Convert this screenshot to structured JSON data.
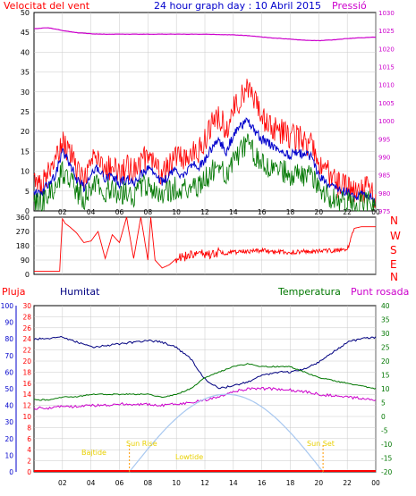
{
  "colors": {
    "red": "#ff0000",
    "blue": "#0000cc",
    "green": "#007700",
    "magenta": "#cc00cc",
    "navy": "#000080",
    "orange": "#ff9900",
    "yellow": "#e8d000",
    "light_blue": "#a8c8f0",
    "grid": "#c8c8c8"
  },
  "top": {
    "title": "24 hour graph day : 10 Abril 2015",
    "left_label": "Velocitat del vent",
    "right_label": "Pressió"
  },
  "middle": {
    "compass": [
      "N",
      "W",
      "S",
      "E",
      "N"
    ]
  },
  "bottom": {
    "legend_pluja": "Pluja",
    "legend_humitat": "Humitat",
    "legend_temperatura": "Temperatura",
    "legend_puntrosada": "Punt rosada",
    "sun_labels": [
      "Bajtide",
      "Sun Rise",
      "Lowtide",
      "Sun Set"
    ]
  },
  "chart_data": [
    {
      "type": "line",
      "name": "wind",
      "title": "24 hour graph day : 10 Abril 2015",
      "ylabel_left": "Velocitat del vent",
      "ylabel_right": "Pressió",
      "ylim_left": [
        0,
        50
      ],
      "ylim_right": [
        975,
        1030
      ],
      "yticks_left": [
        0,
        5,
        10,
        15,
        20,
        25,
        30,
        35,
        40,
        45,
        50
      ],
      "yticks_right": [
        975,
        980,
        985,
        990,
        995,
        1000,
        1005,
        1010,
        1015,
        1020,
        1025,
        1030
      ],
      "xlim": [
        0,
        24
      ],
      "xticks": [
        "02",
        "04",
        "06",
        "08",
        "10",
        "12",
        "14",
        "16",
        "18",
        "20",
        "22",
        "00"
      ],
      "xtick_values": [
        2,
        4,
        6,
        8,
        10,
        12,
        14,
        16,
        18,
        20,
        22,
        24
      ],
      "series": [
        {
          "name": "gust",
          "axis": "left",
          "color": "#ff0000",
          "x": [
            0,
            0.5,
            1,
            1.5,
            2,
            2.5,
            3,
            3.5,
            4,
            4.5,
            5,
            5.5,
            6,
            6.5,
            7,
            7.5,
            8,
            8.5,
            9,
            9.5,
            10,
            10.5,
            11,
            11.5,
            12,
            12.5,
            13,
            13.5,
            14,
            14.5,
            15,
            15.5,
            16,
            16.5,
            17,
            17.5,
            18,
            18.5,
            19,
            19.5,
            20,
            20.5,
            21,
            21.5,
            22,
            22.5,
            23,
            23.5,
            24
          ],
          "y": [
            8,
            6,
            10,
            12,
            18,
            15,
            10,
            8,
            12,
            14,
            10,
            12,
            9,
            11,
            10,
            12,
            14,
            11,
            9,
            12,
            14,
            12,
            16,
            15,
            18,
            22,
            24,
            20,
            26,
            28,
            30,
            27,
            24,
            22,
            20,
            20,
            18,
            19,
            17,
            18,
            12,
            10,
            8,
            6,
            6,
            4,
            5,
            6,
            3
          ]
        },
        {
          "name": "average",
          "axis": "left",
          "color": "#0000cc",
          "x": [
            0,
            0.5,
            1,
            1.5,
            2,
            2.5,
            3,
            3.5,
            4,
            4.5,
            5,
            5.5,
            6,
            6.5,
            7,
            7.5,
            8,
            8.5,
            9,
            9.5,
            10,
            10.5,
            11,
            11.5,
            12,
            12.5,
            13,
            13.5,
            14,
            14.5,
            15,
            15.5,
            16,
            16.5,
            17,
            17.5,
            18,
            18.5,
            19,
            19.5,
            20,
            20.5,
            21,
            21.5,
            22,
            22.5,
            23,
            23.5,
            24
          ],
          "y": [
            5,
            4,
            7,
            9,
            15,
            12,
            8,
            6,
            9,
            11,
            8,
            9,
            7,
            8,
            7,
            9,
            11,
            9,
            7,
            9,
            10,
            9,
            12,
            11,
            13,
            16,
            18,
            15,
            19,
            21,
            23,
            20,
            18,
            17,
            16,
            15,
            14,
            15,
            14,
            14,
            9,
            7,
            6,
            5,
            5,
            3,
            4,
            4,
            2
          ]
        },
        {
          "name": "minimum",
          "axis": "left",
          "color": "#007700",
          "x": [
            0,
            0.5,
            1,
            1.5,
            2,
            2.5,
            3,
            3.5,
            4,
            4.5,
            5,
            5.5,
            6,
            6.5,
            7,
            7.5,
            8,
            8.5,
            9,
            9.5,
            10,
            10.5,
            11,
            11.5,
            12,
            12.5,
            13,
            13.5,
            14,
            14.5,
            15,
            15.5,
            16,
            16.5,
            17,
            17.5,
            18,
            18.5,
            19,
            19.5,
            20,
            20.5,
            21,
            21.5,
            22,
            22.5,
            23,
            23.5,
            24
          ],
          "y": [
            3,
            2,
            4,
            6,
            10,
            8,
            5,
            3,
            5,
            7,
            5,
            6,
            4,
            5,
            4,
            6,
            7,
            5,
            4,
            5,
            6,
            5,
            7,
            6,
            8,
            10,
            11,
            9,
            13,
            15,
            17,
            14,
            12,
            11,
            10,
            10,
            9,
            10,
            9,
            9,
            6,
            4,
            3,
            2,
            2,
            1,
            2,
            2,
            1
          ]
        },
        {
          "name": "pressure",
          "axis": "right",
          "color": "#cc00cc",
          "x": [
            0,
            1,
            2,
            3,
            4,
            5,
            6,
            7,
            8,
            9,
            10,
            11,
            12,
            13,
            14,
            15,
            16,
            17,
            18,
            19,
            20,
            21,
            22,
            23,
            24
          ],
          "y": [
            1025.5,
            1025.8,
            1025,
            1024.4,
            1024.1,
            1024,
            1024,
            1024,
            1024,
            1024,
            1024,
            1024,
            1024,
            1023.9,
            1023.8,
            1023.6,
            1023.2,
            1022.9,
            1022.6,
            1022.3,
            1022.2,
            1022.4,
            1022.8,
            1023,
            1023.2
          ]
        }
      ]
    },
    {
      "type": "line",
      "name": "wind_direction",
      "ylim": [
        0,
        360
      ],
      "yticks": [
        0,
        90,
        180,
        270,
        360
      ],
      "xlim": [
        0,
        24
      ],
      "series": [
        {
          "name": "direction",
          "color": "#ff0000",
          "x": [
            0,
            1,
            1.8,
            2,
            2.2,
            2.5,
            3,
            3.5,
            4,
            4.5,
            5,
            5.5,
            6,
            6.5,
            7,
            7.5,
            8,
            8.2,
            8.5,
            9,
            9.5,
            10,
            10.5,
            11,
            11.5,
            12,
            12.5,
            13,
            13.5,
            14,
            15,
            16,
            17,
            18,
            19,
            20,
            21,
            22,
            22.5,
            23,
            23.5,
            24
          ],
          "y": [
            20,
            20,
            20,
            350,
            320,
            300,
            260,
            200,
            210,
            270,
            100,
            250,
            200,
            360,
            100,
            360,
            90,
            360,
            90,
            40,
            60,
            100,
            110,
            120,
            125,
            130,
            125,
            140,
            135,
            140,
            145,
            150,
            140,
            140,
            145,
            145,
            150,
            155,
            290,
            300,
            300,
            300
          ]
        }
      ]
    },
    {
      "type": "line",
      "name": "humidity_temp",
      "ylim_pluja": [
        0,
        30
      ],
      "ylim_humitat": [
        0,
        100
      ],
      "ylim_temperatura": [
        -20,
        40
      ],
      "yticks_pluja": [
        0,
        2,
        4,
        6,
        8,
        10,
        12,
        14,
        16,
        18,
        20,
        22,
        24,
        26,
        28,
        30
      ],
      "yticks_humitat": [
        0,
        10,
        20,
        30,
        40,
        50,
        60,
        70,
        80,
        90,
        100
      ],
      "yticks_temperatura": [
        -20,
        -15,
        -10,
        -5,
        0,
        5,
        10,
        15,
        20,
        25,
        30,
        35,
        40
      ],
      "xlim": [
        0,
        24
      ],
      "series": [
        {
          "name": "humitat",
          "axis": "humitat",
          "color": "#000080",
          "x": [
            0,
            1,
            2,
            3,
            4,
            5,
            6,
            7,
            8,
            9,
            10,
            11,
            12,
            13,
            14,
            15,
            16,
            17,
            18,
            19,
            20,
            21,
            22,
            23,
            24
          ],
          "y": [
            80,
            80,
            81,
            78,
            75,
            76,
            77,
            78,
            79,
            78,
            75,
            68,
            56,
            50,
            52,
            54,
            58,
            60,
            60,
            62,
            66,
            72,
            78,
            80,
            81
          ]
        },
        {
          "name": "temperatura",
          "axis": "temperatura",
          "color": "#007700",
          "x": [
            0,
            1,
            2,
            3,
            4,
            5,
            6,
            7,
            8,
            9,
            10,
            11,
            12,
            13,
            14,
            15,
            16,
            17,
            18,
            19,
            20,
            21,
            22,
            23,
            24
          ],
          "y": [
            6,
            6,
            7,
            7,
            8,
            8,
            8,
            8,
            8,
            7,
            8,
            10,
            14,
            16,
            18,
            19,
            18,
            18,
            18,
            16,
            14,
            13,
            12,
            11,
            10
          ]
        },
        {
          "name": "punt_rosada",
          "axis": "temperatura",
          "color": "#cc00cc",
          "x": [
            0,
            1,
            2,
            3,
            4,
            5,
            6,
            7,
            8,
            9,
            10,
            11,
            12,
            13,
            14,
            15,
            16,
            17,
            18,
            19,
            20,
            21,
            22,
            23,
            24
          ],
          "y": [
            3,
            3,
            3.5,
            3.5,
            4,
            4,
            4.5,
            4.5,
            4.5,
            4,
            4.5,
            5,
            6,
            7,
            9,
            10,
            10,
            10,
            9.5,
            9,
            8,
            7.5,
            7,
            6.5,
            6
          ]
        },
        {
          "name": "solar",
          "axis": "temperatura",
          "color": "#a8c8f0",
          "x": [
            6.7,
            14.2,
            20.3
          ],
          "y": [
            -20,
            8,
            -20
          ]
        },
        {
          "name": "pluja",
          "axis": "pluja",
          "color": "#ff0000",
          "x": [
            0,
            24
          ],
          "y": [
            0,
            0
          ]
        }
      ]
    }
  ]
}
